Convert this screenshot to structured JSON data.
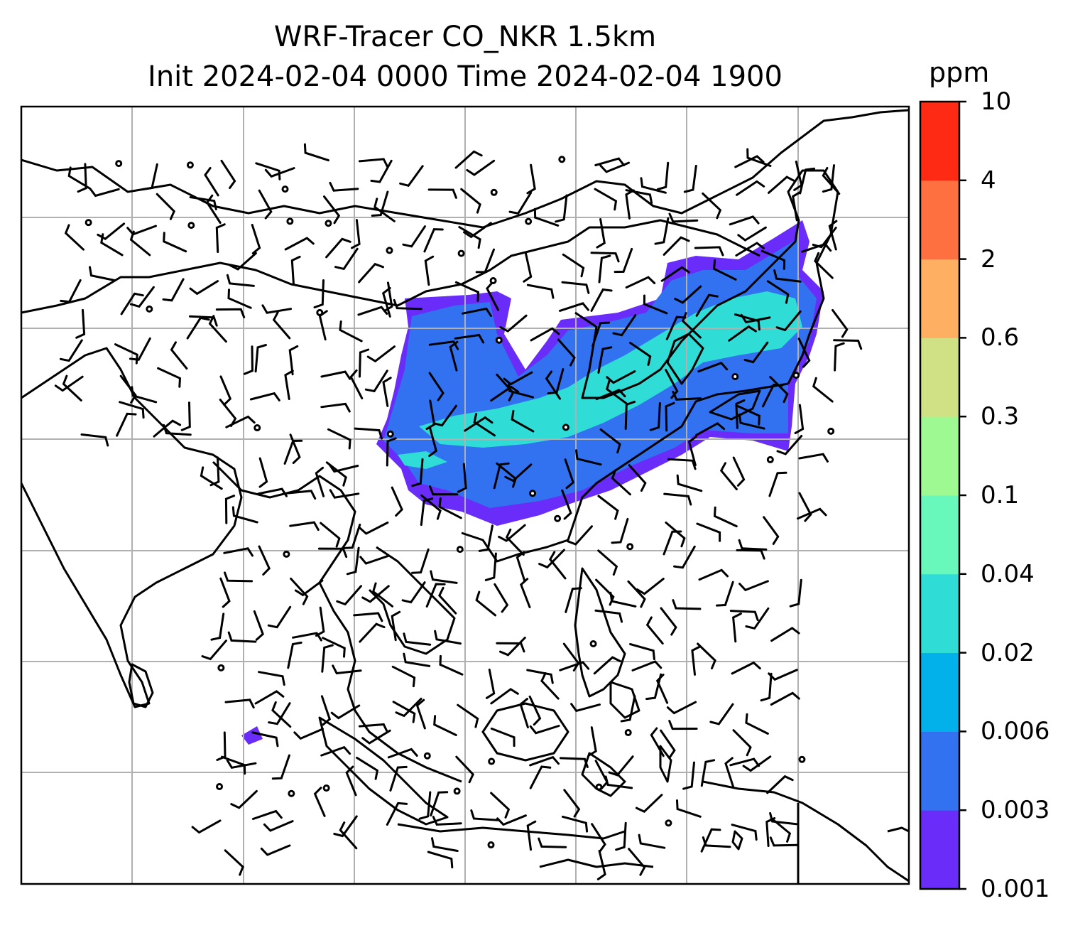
{
  "title": {
    "line1": "WRF-Tracer CO_NKR 1.5km",
    "line2": "Init 2024-02-04 0000 Time 2024-02-04 1900"
  },
  "colorbar": {
    "unit": "ppm",
    "ticks": [
      "0.001",
      "0.003",
      "0.006",
      "0.02",
      "0.04",
      "0.1",
      "0.3",
      "0.6",
      "2",
      "4",
      "10"
    ],
    "colors": [
      "#6a2cf8",
      "#3272f0",
      "#02b1ea",
      "#2fdcd6",
      "#69f8bb",
      "#9ff993",
      "#d0e084",
      "#feaf62",
      "#ff7040",
      "#ff2a14"
    ]
  },
  "map": {
    "plume_levels": [
      "0.001",
      "0.003",
      "0.02"
    ],
    "plume_colors": [
      "#6a2cf8",
      "#3272f0",
      "#2fdcd6"
    ]
  }
}
